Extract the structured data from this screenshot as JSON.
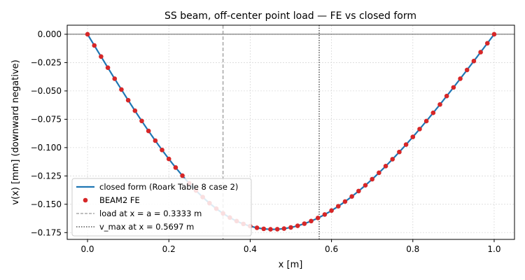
{
  "chart_data": {
    "type": "line",
    "title": "SS beam, off-center point load — FE vs closed form",
    "xlabel": "x [m]",
    "ylabel": "v(x)  [mm]   (downward negative)",
    "xlim": [
      -0.05,
      1.05
    ],
    "ylim": [
      -0.181,
      0.008
    ],
    "x_ticks": [
      0.0,
      0.2,
      0.4,
      0.6,
      0.8,
      1.0
    ],
    "x_tick_labels": [
      "0.0",
      "0.2",
      "0.4",
      "0.6",
      "0.8",
      "1.0"
    ],
    "y_ticks": [
      0.0,
      -0.025,
      -0.05,
      -0.075,
      -0.1,
      -0.125,
      -0.15,
      -0.175
    ],
    "y_tick_labels": [
      "0.000",
      "−0.025",
      "−0.050",
      "−0.075",
      "−0.100",
      "−0.125",
      "−0.150",
      "−0.175"
    ],
    "grid": true,
    "legend_position": "lower-left",
    "load_position": 0.3333,
    "vmax_position": 0.5697,
    "closed_form_params": {
      "a": 0.3333333,
      "peak_deflection": -0.1721
    },
    "series": [
      {
        "name": "closed form (Roark Table 8 case 2)",
        "kind": "line",
        "color": "#1f77b4"
      },
      {
        "name": "BEAM2 FE",
        "kind": "scatter",
        "color": "#d62728",
        "x": [
          0.0,
          0.0167,
          0.0333,
          0.05,
          0.0667,
          0.0833,
          0.1,
          0.1167,
          0.1333,
          0.15,
          0.1667,
          0.1833,
          0.2,
          0.2167,
          0.2333,
          0.25,
          0.2667,
          0.2833,
          0.3,
          0.3167,
          0.3333,
          0.35,
          0.3667,
          0.3833,
          0.4,
          0.4167,
          0.4333,
          0.45,
          0.4667,
          0.4833,
          0.5,
          0.5167,
          0.5333,
          0.55,
          0.5667,
          0.5833,
          0.6,
          0.6167,
          0.6333,
          0.65,
          0.6667,
          0.6833,
          0.7,
          0.7167,
          0.7333,
          0.75,
          0.7667,
          0.7833,
          0.8,
          0.8167,
          0.8333,
          0.85,
          0.8667,
          0.8833,
          0.9,
          0.9167,
          0.9333,
          0.95,
          0.9667,
          0.9833,
          1.0
        ]
      }
    ],
    "reference_lines": [
      {
        "name": "load at x = a = 0.3333 m",
        "x": 0.3333,
        "style": "dashed",
        "color": "#7f7f7f"
      },
      {
        "name": "v_max at x = 0.5697 m",
        "x": 0.5697,
        "style": "dotted",
        "color": "#000000"
      }
    ]
  }
}
